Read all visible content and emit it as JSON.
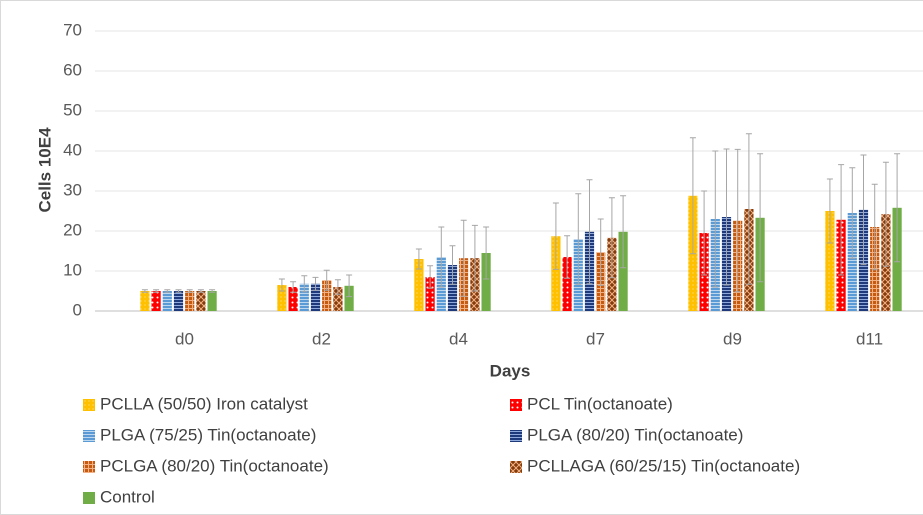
{
  "chart_data": {
    "type": "bar",
    "y_label": "Cells 10E4",
    "x_label": "Days",
    "categories": [
      "d0",
      "d2",
      "d4",
      "d7",
      "d9",
      "d11"
    ],
    "ylim": [
      0,
      70
    ],
    "yticks": [
      0,
      10,
      20,
      30,
      40,
      50,
      60,
      70
    ],
    "grid": true,
    "series": [
      {
        "name": "PCLLA (50/50) Iron catalyst",
        "color": "#ffc000",
        "values": [
          5,
          6.5,
          13,
          18.7,
          28.8,
          25
        ],
        "errors": [
          0.3,
          1.5,
          2.5,
          8.3,
          14.5,
          8
        ]
      },
      {
        "name": "PCL Tin(octanoate)",
        "color": "#ff0000",
        "values": [
          5,
          6,
          8.5,
          13.5,
          19.5,
          22.8
        ],
        "errors": [
          0.3,
          1.3,
          2.8,
          5.3,
          10.5,
          13.8
        ]
      },
      {
        "name": "PLGA (75/25)  Tin(octanoate)",
        "color": "#5b9bd5",
        "values": [
          5,
          6.8,
          13.5,
          18,
          23,
          24.5
        ],
        "errors": [
          0.3,
          2,
          7.5,
          11.3,
          17,
          11.3
        ]
      },
      {
        "name": "PLGA (80/20)  Tin(octanoate)",
        "color": "#1f3a7a",
        "values": [
          5,
          6.8,
          11.5,
          19.8,
          23.5,
          25.3
        ],
        "errors": [
          0.3,
          1.6,
          4.8,
          13,
          17,
          13.7
        ]
      },
      {
        "name": "PCLGA (80/20)  Tin(octanoate)",
        "color": "#c55a11",
        "values": [
          5,
          7.7,
          13.2,
          14.7,
          22.6,
          21
        ],
        "errors": [
          0.3,
          2.5,
          9.5,
          8.3,
          17.8,
          10.7
        ]
      },
      {
        "name": "PCLLAGA (60/25/15)  Tin(octanoate)",
        "color": "#843c0c",
        "values": [
          5,
          6,
          13.2,
          18.3,
          25.5,
          24.2
        ],
        "errors": [
          0.3,
          1.8,
          8.2,
          10,
          18.8,
          13
        ]
      },
      {
        "name": "Control",
        "color": "#70ad47",
        "values": [
          5,
          6.3,
          14.5,
          19.8,
          23.3,
          25.8
        ],
        "errors": [
          0.3,
          2.7,
          6.5,
          9,
          16,
          13.5
        ]
      }
    ]
  }
}
